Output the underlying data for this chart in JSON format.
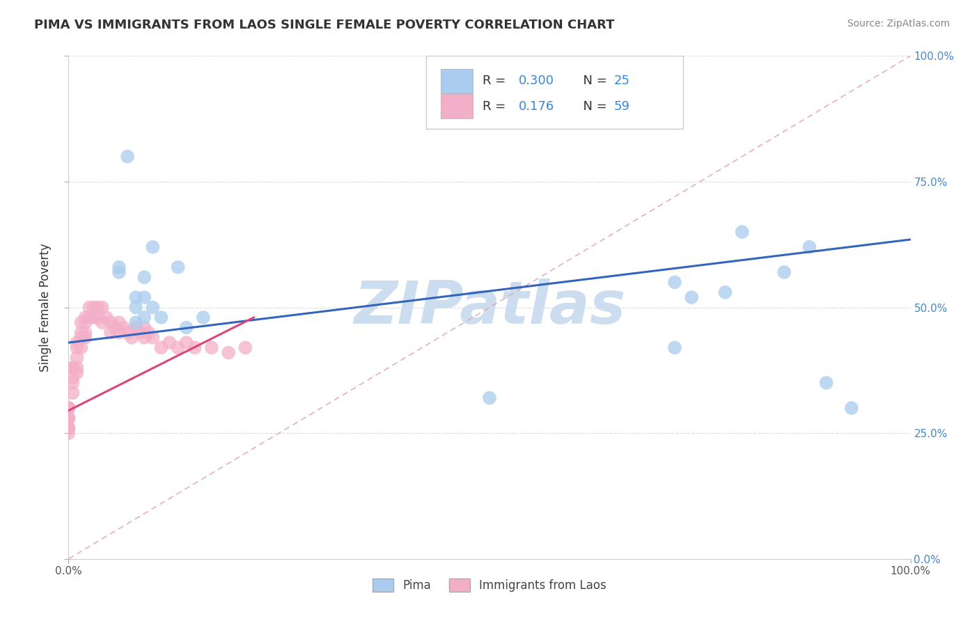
{
  "title": "PIMA VS IMMIGRANTS FROM LAOS SINGLE FEMALE POVERTY CORRELATION CHART",
  "source": "Source: ZipAtlas.com",
  "ylabel": "Single Female Poverty",
  "xlabel": "",
  "xlim": [
    0,
    1
  ],
  "ylim": [
    0,
    1
  ],
  "ytick_labels": [
    "0.0%",
    "25.0%",
    "50.0%",
    "75.0%",
    "100.0%"
  ],
  "ytick_values": [
    0,
    0.25,
    0.5,
    0.75,
    1.0
  ],
  "xtick_labels": [
    "0.0%",
    "100.0%"
  ],
  "xtick_values": [
    0,
    1.0
  ],
  "legend_r_pima": "0.300",
  "legend_n_pima": "25",
  "legend_r_laos": "0.176",
  "legend_n_laos": "59",
  "legend_label_pima": "Pima",
  "legend_label_laos": "Immigrants from Laos",
  "color_pima": "#aaccee",
  "color_laos": "#f4afc8",
  "color_trend_pima": "#3366bb",
  "color_trend_laos": "#dd4477",
  "watermark": "ZIPatlas",
  "watermark_color": "#ccddf0",
  "background_color": "#ffffff",
  "title_fontsize": 13,
  "pima_x": [
    0.07,
    0.1,
    0.13,
    0.09,
    0.09,
    0.08,
    0.08,
    0.06,
    0.08,
    0.09,
    0.1,
    0.11,
    0.14,
    0.16,
    0.06,
    0.5,
    0.72,
    0.74,
    0.78,
    0.8,
    0.85,
    0.88,
    0.9,
    0.93,
    0.72
  ],
  "pima_y": [
    0.8,
    0.62,
    0.58,
    0.56,
    0.52,
    0.52,
    0.5,
    0.58,
    0.47,
    0.48,
    0.5,
    0.48,
    0.46,
    0.48,
    0.57,
    0.32,
    0.55,
    0.52,
    0.53,
    0.65,
    0.57,
    0.62,
    0.35,
    0.3,
    0.42
  ],
  "laos_x": [
    0.0,
    0.0,
    0.0,
    0.0,
    0.0,
    0.0,
    0.0,
    0.0,
    0.0,
    0.0,
    0.005,
    0.005,
    0.005,
    0.005,
    0.005,
    0.01,
    0.01,
    0.01,
    0.01,
    0.01,
    0.015,
    0.015,
    0.015,
    0.015,
    0.02,
    0.02,
    0.02,
    0.02,
    0.025,
    0.025,
    0.03,
    0.03,
    0.035,
    0.035,
    0.04,
    0.04,
    0.045,
    0.05,
    0.05,
    0.055,
    0.06,
    0.06,
    0.065,
    0.07,
    0.075,
    0.08,
    0.085,
    0.09,
    0.09,
    0.095,
    0.1,
    0.11,
    0.12,
    0.13,
    0.14,
    0.15,
    0.17,
    0.19,
    0.21
  ],
  "laos_y": [
    0.3,
    0.3,
    0.3,
    0.28,
    0.28,
    0.28,
    0.26,
    0.26,
    0.26,
    0.25,
    0.38,
    0.38,
    0.36,
    0.35,
    0.33,
    0.43,
    0.42,
    0.4,
    0.38,
    0.37,
    0.47,
    0.45,
    0.44,
    0.42,
    0.48,
    0.47,
    0.45,
    0.44,
    0.5,
    0.48,
    0.5,
    0.48,
    0.5,
    0.48,
    0.5,
    0.47,
    0.48,
    0.47,
    0.45,
    0.46,
    0.47,
    0.45,
    0.46,
    0.45,
    0.44,
    0.46,
    0.45,
    0.46,
    0.44,
    0.45,
    0.44,
    0.42,
    0.43,
    0.42,
    0.43,
    0.42,
    0.42,
    0.41,
    0.42
  ],
  "trend_pima_x0": 0.0,
  "trend_pima_y0": 0.43,
  "trend_pima_x1": 1.0,
  "trend_pima_y1": 0.635,
  "trend_laos_x0": 0.0,
  "trend_laos_y0": 0.295,
  "trend_laos_x1": 0.22,
  "trend_laos_y1": 0.48,
  "diag_color": "#e8a0b0"
}
